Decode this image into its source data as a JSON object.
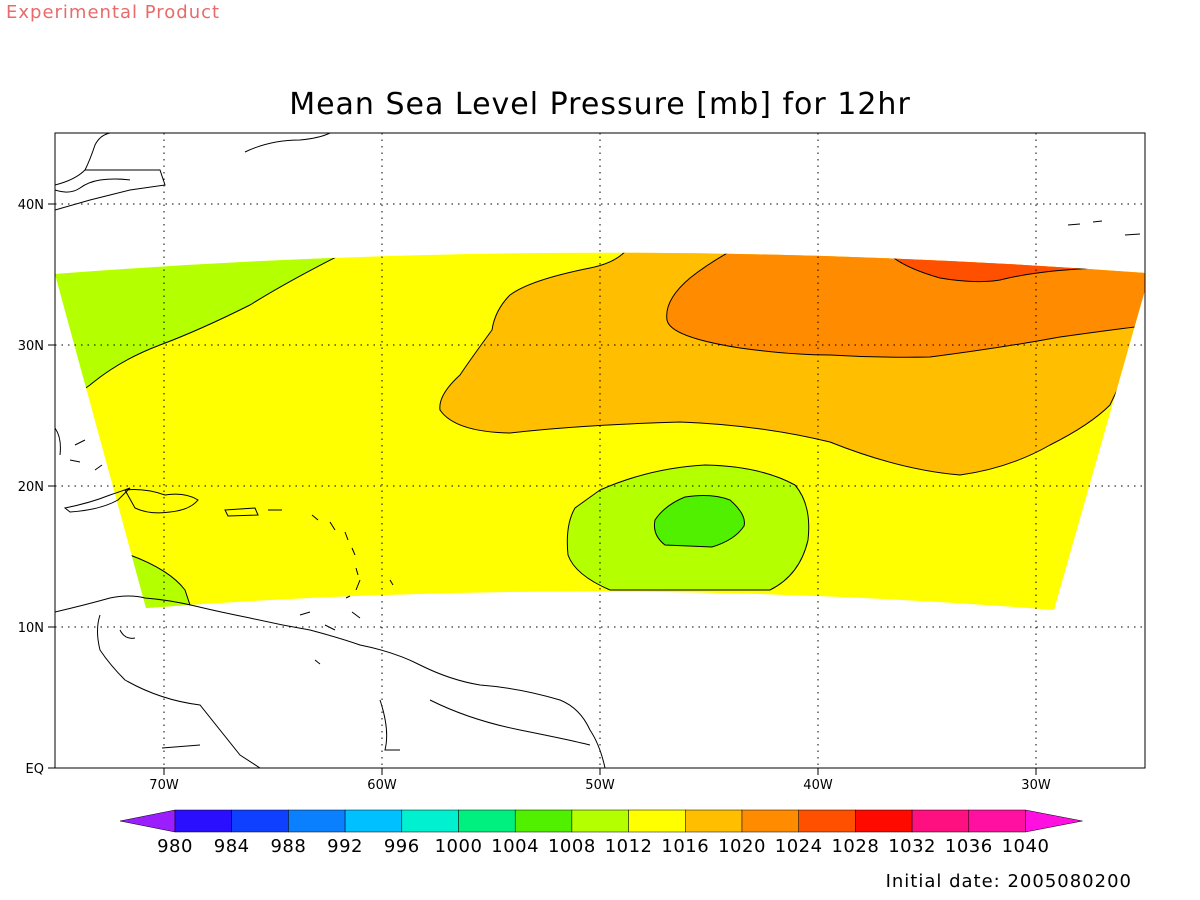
{
  "header": {
    "product_label": "Experimental Product",
    "title": "Mean Sea Level Pressure [mb] for 12hr"
  },
  "footer": {
    "initial_date": "Initial date: 2005080200"
  },
  "axes": {
    "x_ticks": [
      "70W",
      "60W",
      "50W",
      "40W",
      "30W"
    ],
    "y_ticks": [
      "40N",
      "30N",
      "20N",
      "10N",
      "EQ"
    ],
    "lon_range": [
      -75,
      -25
    ],
    "lat_range": [
      0,
      45
    ]
  },
  "colorbar": {
    "levels": [
      "980",
      "984",
      "988",
      "992",
      "996",
      "1000",
      "1004",
      "1008",
      "1012",
      "1016",
      "1020",
      "1024",
      "1028",
      "1032",
      "1036",
      "1040"
    ],
    "colors": [
      "#9b1eff",
      "#2a0fff",
      "#1040ff",
      "#0a80ff",
      "#00c0ff",
      "#00f0d0",
      "#00f080",
      "#50f000",
      "#b4ff00",
      "#ffff00",
      "#ffbe00",
      "#ff8c00",
      "#ff5000",
      "#ff0a00",
      "#ff1080",
      "#ff10a0",
      "#ff10e0"
    ]
  },
  "field": {
    "band_color": "#ffff00",
    "regions": [
      {
        "range": "1008-1012",
        "color": "#b4ff00"
      },
      {
        "range": "1016-1020",
        "color": "#ffbe00"
      },
      {
        "range": "1020-1024",
        "color": "#ff8c00"
      },
      {
        "range": "1024-1028",
        "color": "#ff5000"
      },
      {
        "range": "1004-1008",
        "color": "#50f000"
      }
    ]
  }
}
